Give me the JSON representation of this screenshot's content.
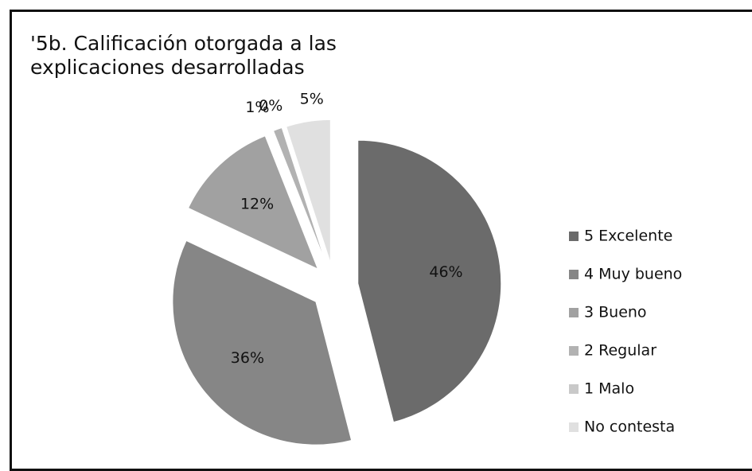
{
  "chart_data": {
    "type": "pie",
    "title": "'5b. Calificación otorgada a las explicaciones desarrolladas",
    "categories": [
      "5 Excelente",
      "4 Muy bueno",
      "3 Bueno",
      "2 Regular",
      "1 Malo",
      "No contesta"
    ],
    "values": [
      46,
      36,
      12,
      1,
      0,
      5
    ],
    "value_labels": [
      "46%",
      "36%",
      "12%",
      "1%",
      "0%",
      "5%"
    ],
    "colors": [
      "#6b6b6b",
      "#868686",
      "#a1a1a1",
      "#b2b2b2",
      "#c9c9c9",
      "#e0e0e0"
    ],
    "legend": "right"
  }
}
